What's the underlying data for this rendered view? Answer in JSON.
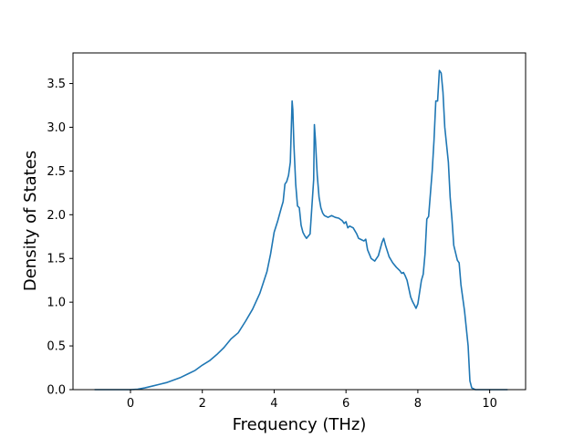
{
  "chart_data": {
    "type": "line",
    "title": "",
    "xlabel": "Frequency (THz)",
    "ylabel": "Density of States",
    "xlim": [
      -1.6,
      11.0
    ],
    "ylim": [
      0.0,
      3.85
    ],
    "grid": false,
    "legend": "none",
    "x_ticks": [
      0,
      2,
      4,
      6,
      8,
      10
    ],
    "x_tick_labels": [
      "0",
      "2",
      "4",
      "6",
      "8",
      "10"
    ],
    "y_ticks": [
      0.0,
      0.5,
      1.0,
      1.5,
      2.0,
      2.5,
      3.0,
      3.5
    ],
    "y_tick_labels": [
      "0.0",
      "0.5",
      "1.0",
      "1.5",
      "2.0",
      "2.5",
      "3.0",
      "3.5"
    ],
    "series": [
      {
        "color": "#1f77b4",
        "x": [
          -1.0,
          -0.5,
          0.0,
          0.2,
          0.4,
          0.6,
          0.8,
          1.0,
          1.2,
          1.4,
          1.6,
          1.8,
          2.0,
          2.2,
          2.4,
          2.6,
          2.8,
          3.0,
          3.2,
          3.4,
          3.6,
          3.8,
          3.9,
          4.0,
          4.1,
          4.2,
          4.25,
          4.3,
          4.35,
          4.4,
          4.45,
          4.5,
          4.52,
          4.55,
          4.6,
          4.65,
          4.7,
          4.75,
          4.8,
          4.85,
          4.9,
          5.0,
          5.1,
          5.12,
          5.15,
          5.18,
          5.2,
          5.25,
          5.3,
          5.35,
          5.4,
          5.5,
          5.6,
          5.7,
          5.8,
          5.9,
          5.95,
          6.0,
          6.05,
          6.1,
          6.2,
          6.3,
          6.35,
          6.4,
          6.5,
          6.55,
          6.6,
          6.7,
          6.8,
          6.9,
          7.0,
          7.05,
          7.1,
          7.2,
          7.3,
          7.4,
          7.5,
          7.55,
          7.6,
          7.65,
          7.7,
          7.8,
          7.85,
          7.9,
          7.95,
          8.0,
          8.1,
          8.15,
          8.2,
          8.25,
          8.3,
          8.4,
          8.45,
          8.5,
          8.55,
          8.6,
          8.65,
          8.7,
          8.75,
          8.8,
          8.85,
          8.9,
          8.95,
          9.0,
          9.1,
          9.15,
          9.2,
          9.3,
          9.4,
          9.45,
          9.5,
          9.6,
          10.0,
          10.5
        ],
        "y": [
          0.0,
          0.0,
          0.0,
          0.005,
          0.02,
          0.04,
          0.06,
          0.08,
          0.11,
          0.14,
          0.18,
          0.22,
          0.28,
          0.33,
          0.4,
          0.48,
          0.58,
          0.65,
          0.78,
          0.92,
          1.1,
          1.35,
          1.55,
          1.8,
          1.93,
          2.08,
          2.15,
          2.35,
          2.38,
          2.45,
          2.6,
          3.3,
          3.2,
          2.8,
          2.35,
          2.1,
          2.08,
          1.88,
          1.8,
          1.76,
          1.73,
          1.78,
          2.4,
          3.03,
          2.85,
          2.6,
          2.45,
          2.2,
          2.08,
          2.02,
          1.99,
          1.97,
          1.99,
          1.97,
          1.96,
          1.93,
          1.9,
          1.92,
          1.85,
          1.87,
          1.85,
          1.78,
          1.73,
          1.72,
          1.7,
          1.72,
          1.6,
          1.5,
          1.47,
          1.53,
          1.68,
          1.73,
          1.65,
          1.52,
          1.45,
          1.4,
          1.36,
          1.33,
          1.34,
          1.3,
          1.25,
          1.06,
          1.01,
          0.97,
          0.93,
          0.98,
          1.25,
          1.32,
          1.55,
          1.95,
          1.98,
          2.5,
          2.85,
          3.3,
          3.3,
          3.65,
          3.62,
          3.4,
          3.0,
          2.8,
          2.6,
          2.2,
          1.95,
          1.65,
          1.48,
          1.45,
          1.2,
          0.9,
          0.5,
          0.1,
          0.02,
          0.0,
          0.0,
          0.0
        ]
      }
    ]
  }
}
